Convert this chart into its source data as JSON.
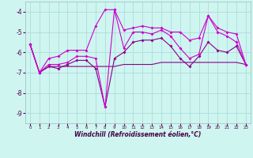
{
  "xlabel": "Windchill (Refroidissement éolien,°C)",
  "background_color": "#cff5f0",
  "grid_color": "#aaddda",
  "line_color_bright": "#cc00cc",
  "line_color_dark": "#880088",
  "x": [
    0,
    1,
    2,
    3,
    4,
    5,
    6,
    7,
    8,
    9,
    10,
    11,
    12,
    13,
    14,
    15,
    16,
    17,
    18,
    19,
    20,
    21,
    22,
    23
  ],
  "y_main": [
    -5.6,
    -7.0,
    -6.6,
    -6.6,
    -6.5,
    -6.2,
    -6.2,
    -6.3,
    -8.7,
    -3.9,
    -5.8,
    -5.0,
    -5.0,
    -5.1,
    -4.9,
    -5.2,
    -5.8,
    -6.3,
    -6.1,
    -4.2,
    -5.0,
    -5.2,
    -5.5,
    -6.6
  ],
  "y_upper": [
    -5.6,
    -7.0,
    -6.3,
    -6.2,
    -5.9,
    -5.9,
    -5.9,
    -4.7,
    -3.9,
    -3.9,
    -4.9,
    -4.8,
    -4.7,
    -4.8,
    -4.8,
    -5.0,
    -5.0,
    -5.4,
    -5.3,
    -4.2,
    -4.8,
    -5.0,
    -5.1,
    -6.6
  ],
  "y_lower": [
    -5.6,
    -7.0,
    -6.7,
    -6.8,
    -6.6,
    -6.4,
    -6.4,
    -6.8,
    -8.7,
    -6.3,
    -6.0,
    -5.5,
    -5.4,
    -5.4,
    -5.3,
    -5.7,
    -6.3,
    -6.7,
    -6.2,
    -5.5,
    -5.9,
    -6.0,
    -5.7,
    -6.6
  ],
  "y_flat": [
    -5.6,
    -7.0,
    -6.7,
    -6.7,
    -6.7,
    -6.7,
    -6.7,
    -6.7,
    -6.7,
    -6.7,
    -6.6,
    -6.6,
    -6.6,
    -6.6,
    -6.5,
    -6.5,
    -6.5,
    -6.5,
    -6.5,
    -6.5,
    -6.5,
    -6.5,
    -6.5,
    -6.6
  ],
  "ylim": [
    -9.5,
    -3.5
  ],
  "xlim": [
    -0.5,
    23.5
  ],
  "yticks": [
    -9,
    -8,
    -7,
    -6,
    -5,
    -4
  ],
  "xticks": [
    0,
    1,
    2,
    3,
    4,
    5,
    6,
    7,
    8,
    9,
    10,
    11,
    12,
    13,
    14,
    15,
    16,
    17,
    18,
    19,
    20,
    21,
    22,
    23
  ]
}
